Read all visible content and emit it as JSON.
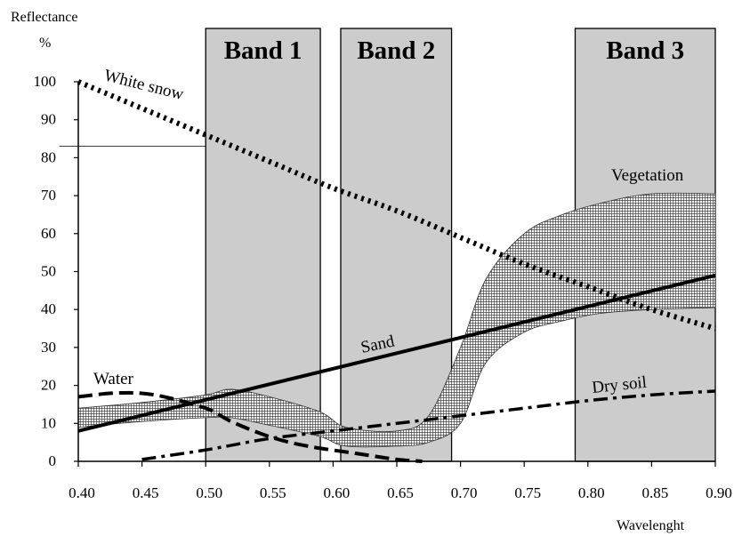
{
  "chart_data": {
    "type": "line",
    "title": "",
    "ylabel": "Reflectance",
    "yunit": "%",
    "xlabel": "Wavelenght",
    "xlim": [
      0.4,
      0.9
    ],
    "ylim": [
      0,
      100
    ],
    "x_ticks": [
      "0.40",
      "0.45",
      "0.50",
      "0.55",
      "0.60",
      "0.65",
      "0.70",
      "0.75",
      "0.80",
      "0.85",
      "0.90"
    ],
    "y_ticks": [
      "0",
      "10",
      "20",
      "30",
      "40",
      "50",
      "60",
      "70",
      "80",
      "90",
      "100"
    ],
    "bands": [
      {
        "name": "Band 1",
        "range": [
          0.5,
          0.59
        ]
      },
      {
        "name": "Band 2",
        "range": [
          0.606,
          0.693
        ]
      },
      {
        "name": "Band 3",
        "range": [
          0.79,
          0.9
        ]
      }
    ],
    "band_color": "#cccccc",
    "reference_line": {
      "y": 83,
      "x": [
        0.385,
        0.5
      ]
    },
    "series": [
      {
        "name": "White snow",
        "style": "dotted",
        "x": [
          0.4,
          0.45,
          0.5,
          0.55,
          0.6,
          0.65,
          0.7,
          0.75,
          0.8,
          0.85,
          0.9
        ],
        "y": [
          100,
          93,
          86,
          79,
          72,
          66,
          59,
          52,
          46,
          40,
          35
        ]
      },
      {
        "name": "Vegetation",
        "style": "band",
        "x": [
          0.4,
          0.45,
          0.5,
          0.52,
          0.55,
          0.59,
          0.61,
          0.65,
          0.675,
          0.7,
          0.72,
          0.75,
          0.78,
          0.81,
          0.85,
          0.9
        ],
        "upper": [
          14,
          15.5,
          17.5,
          19,
          17,
          13,
          9,
          8,
          12,
          30,
          48,
          60,
          65,
          68,
          70.5,
          70.5
        ],
        "lower": [
          9,
          10.5,
          11.5,
          11.5,
          9.5,
          6.5,
          4,
          4,
          5,
          10,
          26,
          34,
          37,
          39,
          40,
          40.5
        ]
      },
      {
        "name": "Sand",
        "style": "solid",
        "x": [
          0.4,
          0.9
        ],
        "y": [
          8,
          49
        ]
      },
      {
        "name": "Water",
        "style": "dashed",
        "x": [
          0.4,
          0.43,
          0.46,
          0.5,
          0.52,
          0.55,
          0.58,
          0.62,
          0.65,
          0.67
        ],
        "y": [
          17,
          18,
          17.5,
          14,
          10.5,
          6.5,
          4,
          2,
          0.5,
          0
        ]
      },
      {
        "name": "Dry soil",
        "style": "dash-dot",
        "x": [
          0.45,
          0.5,
          0.55,
          0.6,
          0.65,
          0.7,
          0.75,
          0.8,
          0.85,
          0.9
        ],
        "y": [
          0.5,
          3,
          6,
          8,
          10,
          12,
          14,
          16,
          17.5,
          18.5
        ]
      }
    ],
    "labels": {
      "white_snow": "White snow",
      "vegetation": "Vegetation",
      "sand": "Sand",
      "water": "Water",
      "dry_soil": "Dry soil"
    }
  }
}
